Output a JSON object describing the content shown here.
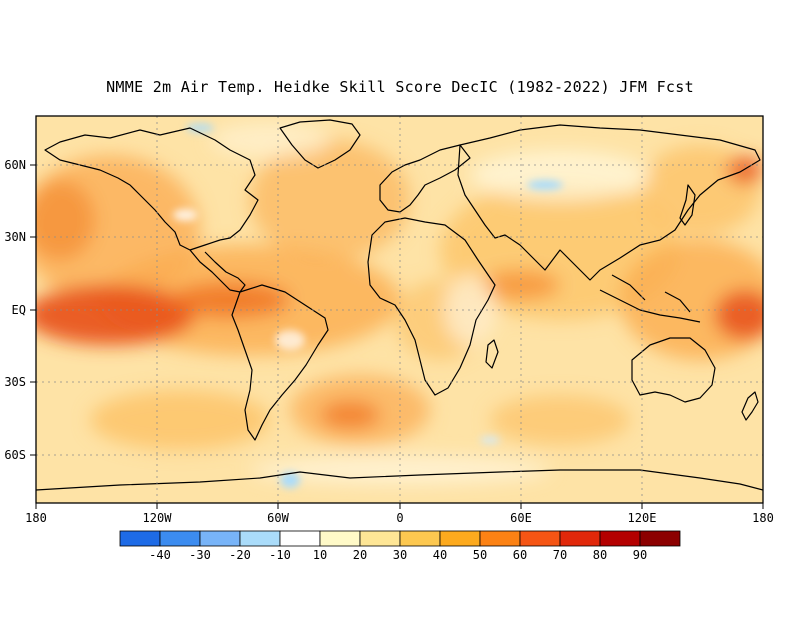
{
  "title": "NMME 2m Air Temp. Heidke Skill Score DecIC (1982-2022) JFM Fcst",
  "lat_ticks": [
    "60N",
    "30N",
    "EQ",
    "30S",
    "60S"
  ],
  "lon_ticks": [
    "180",
    "120W",
    "60W",
    "0",
    "60E",
    "120E",
    "180"
  ],
  "colorbar": {
    "labels": [
      "-40",
      "-30",
      "-20",
      "-10",
      "10",
      "20",
      "30",
      "40",
      "50",
      "60",
      "70",
      "80",
      "90"
    ],
    "colors": [
      "#1e6be6",
      "#3c8cf0",
      "#78b4f8",
      "#aadcfa",
      "#ffffff",
      "#fffac8",
      "#fee696",
      "#fdc850",
      "#fdaa1e",
      "#fc8214",
      "#f55514",
      "#e1280a",
      "#b40000",
      "#8c0000"
    ]
  },
  "field_colors": {
    "strong": "#d22d0a",
    "high": "#f06414",
    "moderate": "#fa9628",
    "low": "#fdc864",
    "faint": "#fee6a8",
    "negative": "#aadcfa"
  }
}
